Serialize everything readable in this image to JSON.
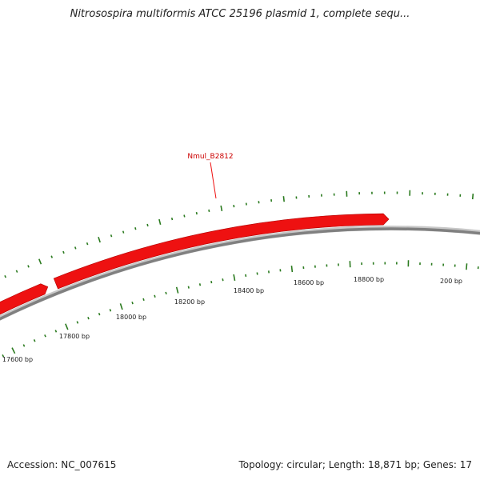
{
  "title": "Nitrosospira multiformis ATCC 25196 plasmid 1, complete sequ...",
  "footer": {
    "accession_label": "Accession:",
    "accession": "NC_007615",
    "topology_label": "Topology:",
    "topology": "circular",
    "length_label": "Length:",
    "length": "18,871 bp",
    "genes_label": "Genes:",
    "genes": "17"
  },
  "colors": {
    "gene": "#ee1111",
    "gene_label": "#cc0000",
    "backbone": "#808080",
    "ticks": "#2a7a1e"
  },
  "gene": {
    "name": "Nmul_B2812"
  },
  "scale": {
    "ticks": [
      {
        "label": "17600 bp"
      },
      {
        "label": "17800 bp"
      },
      {
        "label": "18000 bp"
      },
      {
        "label": "18200 bp"
      },
      {
        "label": "18400 bp"
      },
      {
        "label": "18600 bp"
      },
      {
        "label": "18800 bp"
      },
      {
        "label": "200 bp"
      }
    ]
  }
}
